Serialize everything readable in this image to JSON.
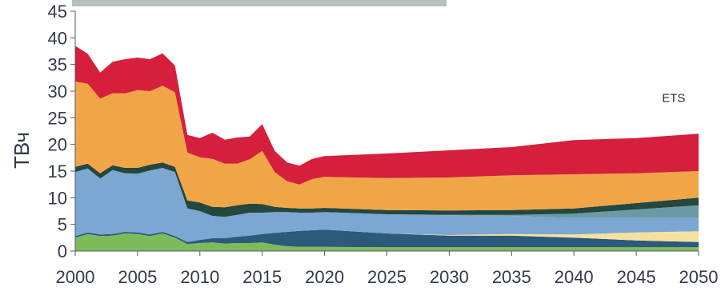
{
  "chart_data": {
    "type": "area",
    "stacked": true,
    "title": "",
    "xlabel": "",
    "ylabel": "ТВч",
    "xlim": [
      2000,
      2050
    ],
    "ylim": [
      0,
      45
    ],
    "x_ticks": [
      "2000",
      "2005",
      "2010",
      "2015",
      "2020",
      "2025",
      "2030",
      "2035",
      "2040",
      "2045",
      "2050"
    ],
    "y_ticks": [
      "0",
      "5",
      "10",
      "15",
      "20",
      "25",
      "30",
      "35",
      "40",
      "45"
    ],
    "grid": false,
    "legend": "none",
    "annotations": [
      {
        "text": "ETS",
        "x": 2048,
        "y": 28
      }
    ],
    "header_bar_color": "#b5c1bd",
    "x": [
      2000,
      2001,
      2002,
      2003,
      2004,
      2005,
      2006,
      2007,
      2008,
      2009,
      2010,
      2011,
      2012,
      2013,
      2014,
      2015,
      2016,
      2017,
      2018,
      2019,
      2020,
      2025,
      2030,
      2035,
      2040,
      2045,
      2050
    ],
    "series": [
      {
        "color": "#7dbb5a",
        "values": [
          2.5,
          3.2,
          2.8,
          2.9,
          3.3,
          3.2,
          2.8,
          3.3,
          2.5,
          1.3,
          1.5,
          1.6,
          1.4,
          1.5,
          1.5,
          1.6,
          1.2,
          0.9,
          0.8,
          0.8,
          0.8,
          0.7,
          0.7,
          0.7,
          0.7,
          0.7,
          0.7
        ]
      },
      {
        "color": "#2e5a7a",
        "values": [
          0.3,
          0.3,
          0.3,
          0.3,
          0.3,
          0.3,
          0.3,
          0.3,
          0.3,
          0.4,
          0.6,
          0.8,
          1.0,
          1.2,
          1.4,
          1.6,
          2.2,
          2.7,
          3.0,
          3.1,
          3.2,
          2.6,
          2.2,
          2.2,
          1.8,
          1.3,
          1.0
        ]
      },
      {
        "color": "#f4e1a0",
        "values": [
          0,
          0,
          0,
          0,
          0,
          0,
          0,
          0,
          0,
          0,
          0,
          0,
          0,
          0,
          0,
          0,
          0,
          0,
          0,
          0,
          0,
          0,
          0.1,
          0.3,
          0.6,
          1.5,
          2.0
        ]
      },
      {
        "color": "#7ba7d2",
        "values": [
          12.0,
          12.0,
          10.5,
          12.0,
          11.0,
          11.0,
          12.0,
          12.0,
          12.0,
          6.3,
          5.4,
          4.2,
          4.0,
          4.1,
          4.3,
          4.0,
          3.9,
          3.7,
          3.4,
          3.3,
          3.3,
          3.6,
          3.7,
          3.4,
          3.1,
          2.7,
          2.5
        ]
      },
      {
        "color": "#6b9aa6",
        "values": [
          0,
          0,
          0,
          0,
          0,
          0,
          0,
          0,
          0,
          0,
          0,
          0,
          0,
          0,
          0,
          0,
          0,
          0,
          0,
          0,
          0,
          0,
          0.1,
          0.2,
          0.8,
          1.6,
          2.4
        ]
      },
      {
        "color": "#24473f",
        "values": [
          1.0,
          0.9,
          1.0,
          0.9,
          1.0,
          1.1,
          1.1,
          1.0,
          1.0,
          1.5,
          1.6,
          1.7,
          1.8,
          1.8,
          1.7,
          1.6,
          1.0,
          0.8,
          0.8,
          0.8,
          0.8,
          0.8,
          0.8,
          0.9,
          1.0,
          1.2,
          1.4
        ]
      },
      {
        "color": "#f0a646",
        "values": [
          16.0,
          15.0,
          14.0,
          13.5,
          14.0,
          14.6,
          13.8,
          14.4,
          14.0,
          9.0,
          8.5,
          9.0,
          8.2,
          7.8,
          8.3,
          10.0,
          6.5,
          5.0,
          4.5,
          5.5,
          5.8,
          6.0,
          6.2,
          6.5,
          6.4,
          5.6,
          5.0
        ]
      },
      {
        "color": "#d51f3d",
        "values": [
          6.7,
          5.6,
          4.9,
          5.9,
          6.4,
          6.1,
          6.0,
          6.1,
          5.0,
          3.3,
          3.6,
          4.9,
          4.5,
          4.9,
          4.3,
          5.0,
          4.0,
          3.5,
          3.5,
          3.8,
          3.9,
          4.6,
          5.1,
          5.3,
          6.4,
          6.6,
          7.0
        ]
      }
    ]
  }
}
